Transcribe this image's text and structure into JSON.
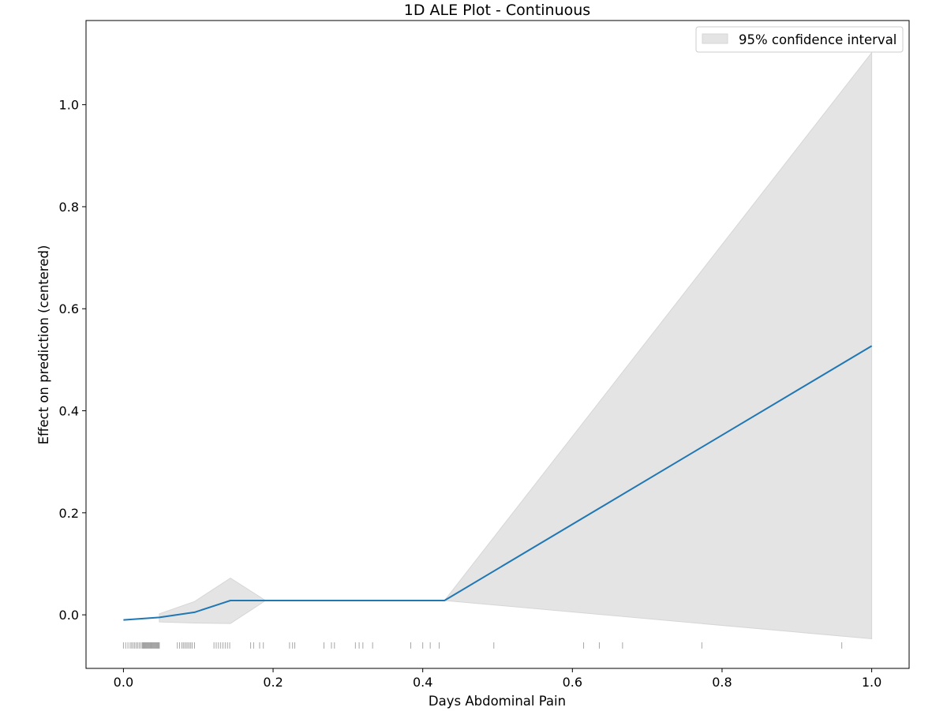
{
  "chart_data": {
    "type": "line",
    "title": "1D ALE Plot - Continuous",
    "xlabel": "Days Abdominal Pain",
    "ylabel": "Effect on prediction (centered)",
    "xlim": [
      -0.05,
      1.05
    ],
    "ylim": [
      -0.105,
      1.165
    ],
    "xticks": [
      {
        "value": 0.0,
        "label": "0.0"
      },
      {
        "value": 0.2,
        "label": "0.2"
      },
      {
        "value": 0.4,
        "label": "0.4"
      },
      {
        "value": 0.6,
        "label": "0.6"
      },
      {
        "value": 0.8,
        "label": "0.8"
      },
      {
        "value": 1.0,
        "label": "1.0"
      }
    ],
    "yticks": [
      {
        "value": 0.0,
        "label": "0.0"
      },
      {
        "value": 0.2,
        "label": "0.2"
      },
      {
        "value": 0.4,
        "label": "0.4"
      },
      {
        "value": 0.6,
        "label": "0.6"
      },
      {
        "value": 0.8,
        "label": "0.8"
      },
      {
        "value": 1.0,
        "label": "1.0"
      }
    ],
    "grid": false,
    "legend": {
      "placement": "top-right",
      "entries": [
        "95% confidence interval"
      ]
    },
    "colors": {
      "line": "#1f77b4",
      "band": "#e4e4e4",
      "band_edge": "#d6d6d6",
      "rug": "#000000"
    },
    "series": [
      {
        "x": [
          0.0,
          0.048,
          0.095,
          0.143,
          0.19,
          0.429,
          1.0
        ],
        "y": [
          -0.01,
          -0.005,
          0.005,
          0.028,
          0.028,
          0.028,
          0.527
        ]
      }
    ],
    "confidence_interval": {
      "label": "95% confidence interval",
      "x": [
        0.048,
        0.095,
        0.143,
        0.19,
        0.429,
        1.0
      ],
      "lower": [
        -0.014,
        -0.016,
        -0.017,
        0.028,
        0.028,
        -0.047
      ],
      "upper": [
        0.002,
        0.026,
        0.072,
        0.028,
        0.028,
        1.102
      ]
    },
    "rug": {
      "y": -0.06,
      "x": [
        0.0,
        0.003,
        0.006,
        0.009,
        0.011,
        0.013,
        0.015,
        0.017,
        0.019,
        0.021,
        0.023,
        0.025,
        0.026,
        0.027,
        0.028,
        0.029,
        0.03,
        0.031,
        0.032,
        0.033,
        0.034,
        0.035,
        0.036,
        0.037,
        0.038,
        0.039,
        0.04,
        0.041,
        0.042,
        0.043,
        0.044,
        0.045,
        0.046,
        0.047,
        0.048,
        0.072,
        0.075,
        0.078,
        0.08,
        0.082,
        0.084,
        0.086,
        0.088,
        0.09,
        0.092,
        0.095,
        0.121,
        0.124,
        0.127,
        0.13,
        0.133,
        0.136,
        0.139,
        0.142,
        0.17,
        0.174,
        0.182,
        0.187,
        0.222,
        0.226,
        0.229,
        0.268,
        0.278,
        0.282,
        0.31,
        0.315,
        0.32,
        0.333,
        0.384,
        0.4,
        0.41,
        0.422,
        0.495,
        0.615,
        0.636,
        0.667,
        0.773,
        0.96
      ]
    }
  }
}
